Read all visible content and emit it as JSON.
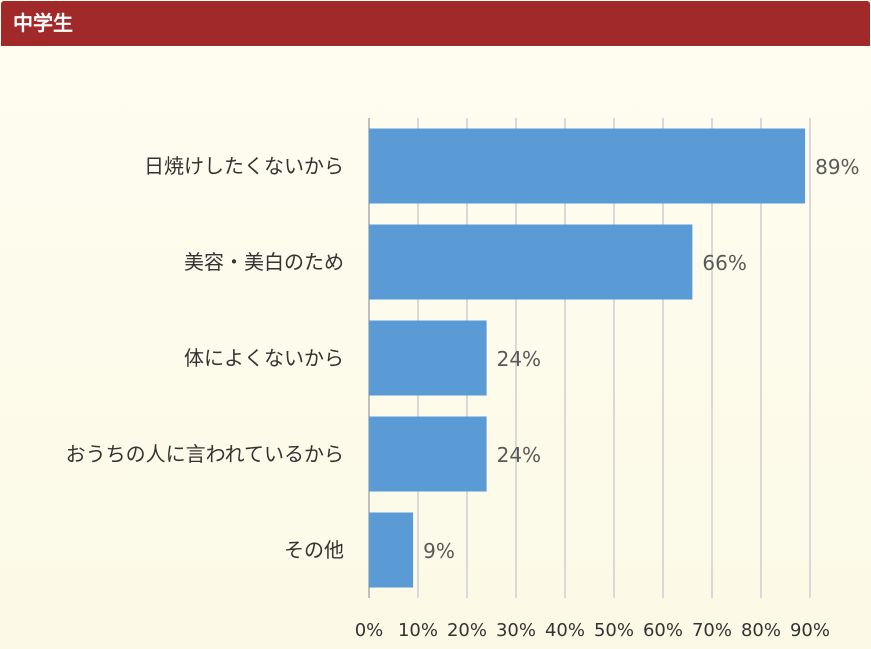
{
  "header": {
    "title": "中学生"
  },
  "chart_data": {
    "type": "bar",
    "orientation": "horizontal",
    "categories": [
      "日焼けしたくないから",
      "美容・美白のため",
      "体によくないから",
      "おうちの人に言われているから",
      "その他"
    ],
    "values": [
      89,
      66,
      24,
      24,
      9
    ],
    "value_labels": [
      "89%",
      "66%",
      "24%",
      "24%",
      "9%"
    ],
    "x_ticks": [
      "0%",
      "10%",
      "20%",
      "30%",
      "40%",
      "50%",
      "60%",
      "70%",
      "80%",
      "90%"
    ],
    "xlim": [
      0,
      90
    ],
    "grid": "vertical",
    "bar_color": "#5b9bd5",
    "grid_color": "#d9d9d9",
    "header_color": "#a1292a"
  }
}
